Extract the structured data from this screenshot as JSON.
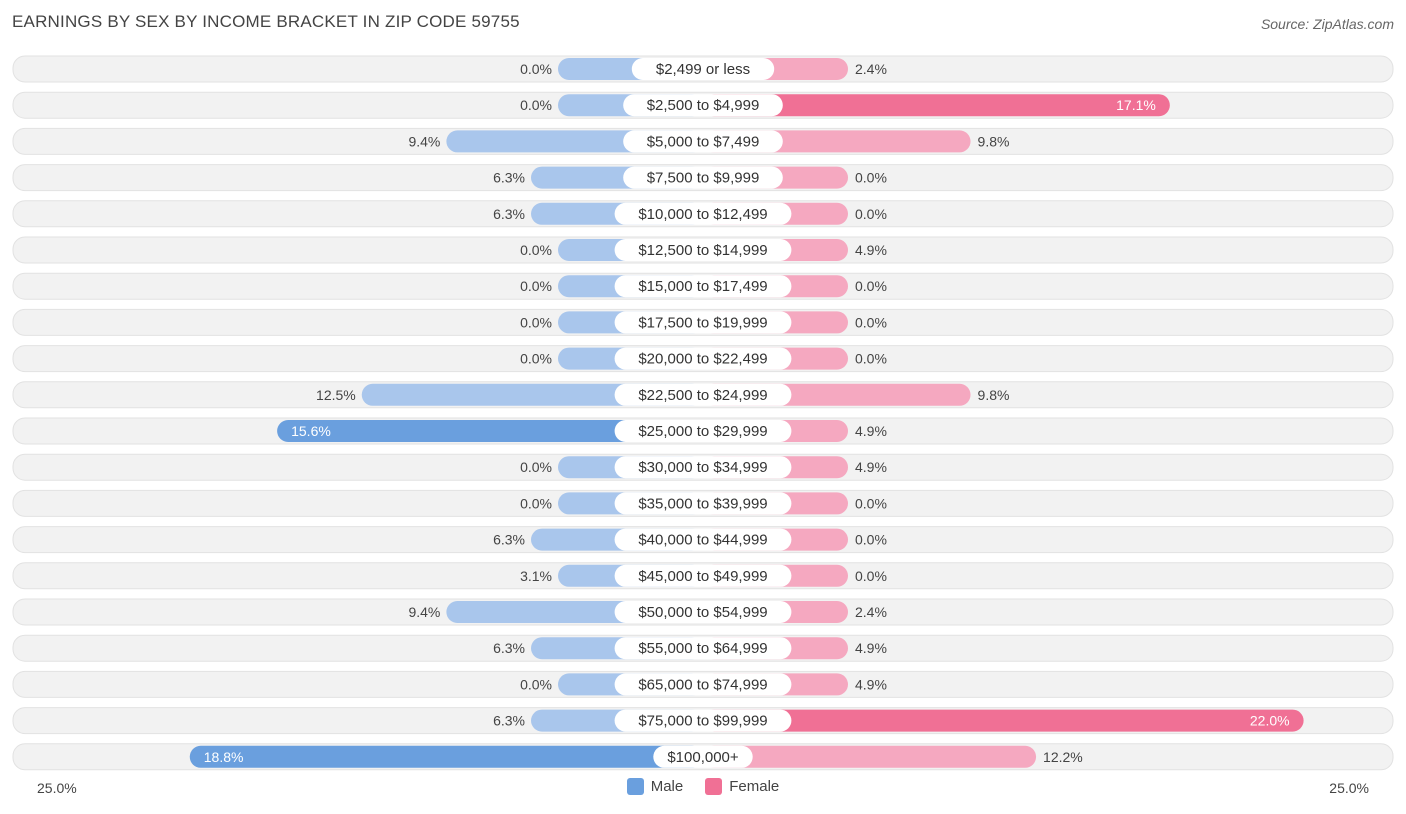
{
  "header": {
    "title": "EARNINGS BY SEX BY INCOME BRACKET IN ZIP CODE 59755",
    "source": "Source: ZipAtlas.com"
  },
  "colors": {
    "male": "#6a9fde",
    "male_light": "#a9c6ec",
    "female": "#f07095",
    "female_light": "#f5a8c0",
    "row_bg": "#f2f2f2",
    "row_border": "#e2e2e2"
  },
  "chart_data": {
    "type": "bar",
    "orientation": "horizontal-diverging",
    "title": "EARNINGS BY SEX BY INCOME BRACKET IN ZIP CODE 59755",
    "xlim": [
      -25,
      25
    ],
    "axis_min_label": "25.0%",
    "axis_max_label": "25.0%",
    "legend_position": "bottom-center",
    "categories": [
      "$2,499 or less",
      "$2,500 to $4,999",
      "$5,000 to $7,499",
      "$7,500 to $9,999",
      "$10,000 to $12,499",
      "$12,500 to $14,999",
      "$15,000 to $17,499",
      "$17,500 to $19,999",
      "$20,000 to $22,499",
      "$22,500 to $24,999",
      "$25,000 to $29,999",
      "$30,000 to $34,999",
      "$35,000 to $39,999",
      "$40,000 to $44,999",
      "$45,000 to $49,999",
      "$50,000 to $54,999",
      "$55,000 to $64,999",
      "$65,000 to $74,999",
      "$75,000 to $99,999",
      "$100,000+"
    ],
    "series": [
      {
        "name": "Male",
        "values": [
          0.0,
          0.0,
          9.4,
          6.3,
          6.3,
          0.0,
          0.0,
          0.0,
          0.0,
          12.5,
          15.6,
          0.0,
          0.0,
          6.3,
          3.1,
          9.4,
          6.3,
          0.0,
          6.3,
          18.8
        ],
        "labels": [
          "0.0%",
          "0.0%",
          "9.4%",
          "6.3%",
          "6.3%",
          "0.0%",
          "0.0%",
          "0.0%",
          "0.0%",
          "12.5%",
          "15.6%",
          "0.0%",
          "0.0%",
          "6.3%",
          "3.1%",
          "9.4%",
          "6.3%",
          "0.0%",
          "6.3%",
          "18.8%"
        ]
      },
      {
        "name": "Female",
        "values": [
          2.4,
          17.1,
          9.8,
          0.0,
          0.0,
          4.9,
          0.0,
          0.0,
          0.0,
          9.8,
          4.9,
          4.9,
          0.0,
          0.0,
          0.0,
          2.4,
          4.9,
          4.9,
          22.0,
          12.2
        ],
        "labels": [
          "2.4%",
          "17.1%",
          "9.8%",
          "0.0%",
          "0.0%",
          "4.9%",
          "0.0%",
          "0.0%",
          "0.0%",
          "9.8%",
          "4.9%",
          "4.9%",
          "0.0%",
          "0.0%",
          "0.0%",
          "2.4%",
          "4.9%",
          "4.9%",
          "22.0%",
          "12.2%"
        ]
      }
    ]
  },
  "legend": {
    "male_label": "Male",
    "female_label": "Female"
  }
}
